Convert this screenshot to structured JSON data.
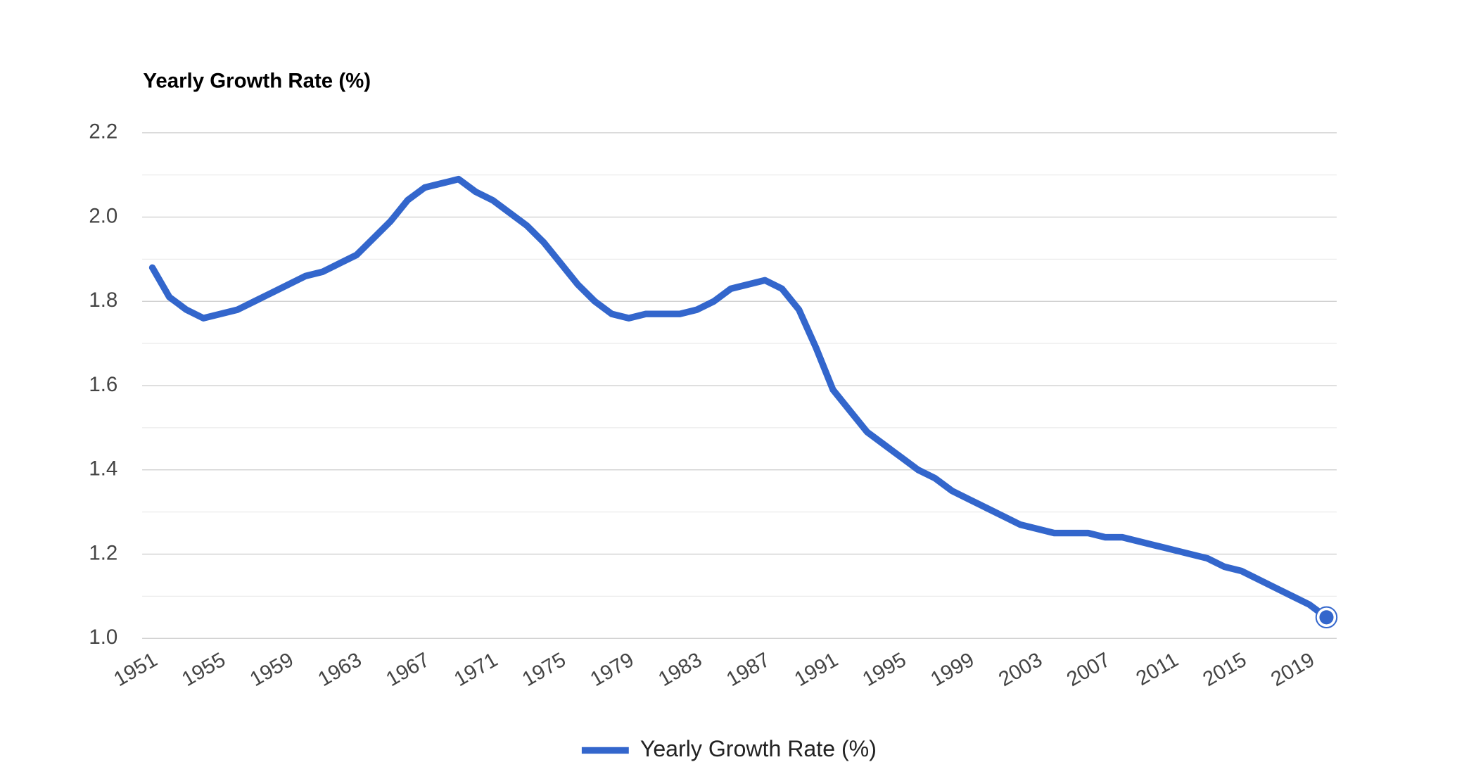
{
  "chart_data": {
    "type": "line",
    "title": "Yearly Growth Rate (%)",
    "x": [
      1951,
      1952,
      1953,
      1954,
      1955,
      1956,
      1957,
      1958,
      1959,
      1960,
      1961,
      1962,
      1963,
      1964,
      1965,
      1966,
      1967,
      1968,
      1969,
      1970,
      1971,
      1972,
      1973,
      1974,
      1975,
      1976,
      1977,
      1978,
      1979,
      1980,
      1981,
      1982,
      1983,
      1984,
      1985,
      1986,
      1987,
      1988,
      1989,
      1990,
      1991,
      1992,
      1993,
      1994,
      1995,
      1996,
      1997,
      1998,
      1999,
      2000,
      2001,
      2002,
      2003,
      2004,
      2005,
      2006,
      2007,
      2008,
      2009,
      2010,
      2011,
      2012,
      2013,
      2014,
      2015,
      2016,
      2017,
      2018,
      2019,
      2020
    ],
    "series": [
      {
        "name": "Yearly Growth Rate (%)",
        "color": "#3366cc",
        "values": [
          1.88,
          1.81,
          1.78,
          1.76,
          1.77,
          1.78,
          1.8,
          1.82,
          1.84,
          1.86,
          1.87,
          1.89,
          1.91,
          1.95,
          1.99,
          2.04,
          2.07,
          2.08,
          2.09,
          2.06,
          2.04,
          2.01,
          1.98,
          1.94,
          1.89,
          1.84,
          1.8,
          1.77,
          1.76,
          1.77,
          1.77,
          1.77,
          1.78,
          1.8,
          1.83,
          1.84,
          1.85,
          1.83,
          1.78,
          1.69,
          1.59,
          1.54,
          1.49,
          1.46,
          1.43,
          1.4,
          1.38,
          1.35,
          1.33,
          1.31,
          1.29,
          1.27,
          1.26,
          1.25,
          1.25,
          1.25,
          1.24,
          1.24,
          1.23,
          1.22,
          1.21,
          1.2,
          1.19,
          1.17,
          1.16,
          1.14,
          1.12,
          1.1,
          1.08,
          1.05
        ]
      }
    ],
    "xlim": [
      1950.4,
      2020.6
    ],
    "xticks": [
      1951,
      1955,
      1959,
      1963,
      1967,
      1971,
      1975,
      1979,
      1983,
      1987,
      1991,
      1995,
      1999,
      2003,
      2007,
      2011,
      2015,
      2019
    ],
    "ylim": [
      1.0,
      2.2
    ],
    "yticks": [
      {
        "value": 1.0,
        "label": "1.0"
      },
      1.2,
      1.4,
      1.6,
      1.8,
      {
        "value": 2.0,
        "label": "2.0"
      },
      2.2
    ],
    "minor_yticks": [
      1.1,
      1.3,
      1.5,
      1.7,
      1.9,
      2.1
    ],
    "grid": true,
    "legend": "bottom"
  }
}
